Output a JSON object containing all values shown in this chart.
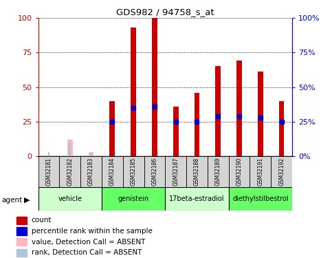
{
  "title": "GDS982 / 94758_s_at",
  "samples": [
    "GSM32181",
    "GSM32182",
    "GSM32183",
    "GSM32184",
    "GSM32185",
    "GSM32186",
    "GSM32187",
    "GSM32188",
    "GSM32189",
    "GSM32190",
    "GSM32191",
    "GSM32192"
  ],
  "count_values": [
    0,
    0,
    0,
    40,
    93,
    100,
    36,
    46,
    65,
    69,
    61,
    40
  ],
  "rank_values": [
    0,
    0,
    0,
    25,
    35,
    36,
    25,
    25,
    29,
    29,
    28,
    25
  ],
  "absent_value_bars": [
    0,
    12,
    3,
    0,
    0,
    0,
    0,
    0,
    0,
    0,
    0,
    0
  ],
  "absent_rank_bars": [
    3,
    10,
    2,
    0,
    0,
    0,
    0,
    0,
    0,
    0,
    0,
    0
  ],
  "absent_samples": [
    0,
    1,
    2
  ],
  "agents": [
    {
      "label": "vehicle",
      "start": 0,
      "end": 3,
      "color": "#CCFFCC"
    },
    {
      "label": "genistein",
      "start": 3,
      "end": 6,
      "color": "#66FF66"
    },
    {
      "label": "17beta-estradiol",
      "start": 6,
      "end": 9,
      "color": "#CCFFCC"
    },
    {
      "label": "diethylstilbestrol",
      "start": 9,
      "end": 12,
      "color": "#66FF66"
    }
  ],
  "ylim": [
    0,
    100
  ],
  "yticks": [
    0,
    25,
    50,
    75,
    100
  ],
  "count_color": "#CC0000",
  "rank_color": "#0000CC",
  "absent_value_color": "#FFB6C1",
  "absent_rank_color": "#B0C4DE",
  "ylabel_left_color": "#CC0000",
  "ylabel_right_color": "#0000CC",
  "grid_style": "dotted",
  "background_plot": "#ffffff",
  "sample_box_color": "#d4d4d4",
  "bar_width": 0.25,
  "rank_marker_size": 5,
  "legend_items": [
    {
      "color": "#CC0000",
      "label": "count"
    },
    {
      "color": "#0000CC",
      "label": "percentile rank within the sample"
    },
    {
      "color": "#FFB6C1",
      "label": "value, Detection Call = ABSENT"
    },
    {
      "color": "#B0C4DE",
      "label": "rank, Detection Call = ABSENT"
    }
  ]
}
